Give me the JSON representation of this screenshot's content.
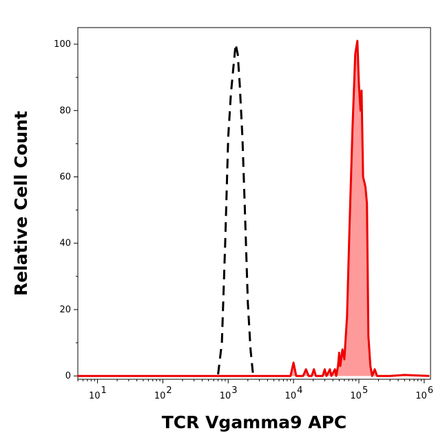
{
  "chart_data": {
    "type": "area",
    "title": "",
    "xlabel": "TCR Vgamma9 APC",
    "ylabel": "Relative Cell Count",
    "x_scale": "log",
    "xlim": [
      5,
      1250000
    ],
    "ylim": [
      -1,
      105
    ],
    "grid": false,
    "x_ticks": [
      {
        "value": 10,
        "base": "10",
        "exp": "1"
      },
      {
        "value": 100,
        "base": "10",
        "exp": "2"
      },
      {
        "value": 1000,
        "base": "10",
        "exp": "3"
      },
      {
        "value": 10000,
        "base": "10",
        "exp": "4"
      },
      {
        "value": 100000,
        "base": "10",
        "exp": "5"
      },
      {
        "value": 1000000,
        "base": "10",
        "exp": "6"
      }
    ],
    "y_ticks": [
      {
        "value": 0,
        "label": "0"
      },
      {
        "value": 20,
        "label": "20"
      },
      {
        "value": 40,
        "label": "40"
      },
      {
        "value": 60,
        "label": "60"
      },
      {
        "value": 80,
        "label": "80"
      },
      {
        "value": 100,
        "label": "100"
      }
    ],
    "series": [
      {
        "color": "#000000",
        "fill": "none",
        "dashed": true,
        "points": [
          [
            700,
            0.5
          ],
          [
            800,
            10
          ],
          [
            900,
            40
          ],
          [
            1000,
            72
          ],
          [
            1100,
            85
          ],
          [
            1200,
            93
          ],
          [
            1300,
            100
          ],
          [
            1400,
            97
          ],
          [
            1500,
            88
          ],
          [
            1650,
            72
          ],
          [
            1800,
            50
          ],
          [
            2000,
            22
          ],
          [
            2200,
            8
          ],
          [
            2400,
            0.5
          ]
        ]
      },
      {
        "color": "#ee0000",
        "fill": "#ff9a9a",
        "dashed": false,
        "points": [
          [
            5,
            0
          ],
          [
            2000,
            0
          ],
          [
            9000,
            0
          ],
          [
            10000,
            4
          ],
          [
            11000,
            0
          ],
          [
            14000,
            0
          ],
          [
            15500,
            2
          ],
          [
            17000,
            0
          ],
          [
            19000,
            0
          ],
          [
            20500,
            2
          ],
          [
            22000,
            0
          ],
          [
            28000,
            0
          ],
          [
            30000,
            2
          ],
          [
            32000,
            0
          ],
          [
            36000,
            2
          ],
          [
            38000,
            0
          ],
          [
            43000,
            2
          ],
          [
            45000,
            0
          ],
          [
            48000,
            3
          ],
          [
            50000,
            7
          ],
          [
            52000,
            3
          ],
          [
            56000,
            8
          ],
          [
            60000,
            5
          ],
          [
            66000,
            18
          ],
          [
            72000,
            45
          ],
          [
            80000,
            75
          ],
          [
            88000,
            97
          ],
          [
            95000,
            101
          ],
          [
            100000,
            88
          ],
          [
            106000,
            80
          ],
          [
            110000,
            86
          ],
          [
            116000,
            60
          ],
          [
            126000,
            57
          ],
          [
            133000,
            52
          ],
          [
            140000,
            12
          ],
          [
            150000,
            3
          ],
          [
            160000,
            0
          ],
          [
            175000,
            2
          ],
          [
            190000,
            0
          ],
          [
            300000,
            0
          ],
          [
            500000,
            0.3
          ],
          [
            1200000,
            0
          ]
        ]
      }
    ]
  }
}
